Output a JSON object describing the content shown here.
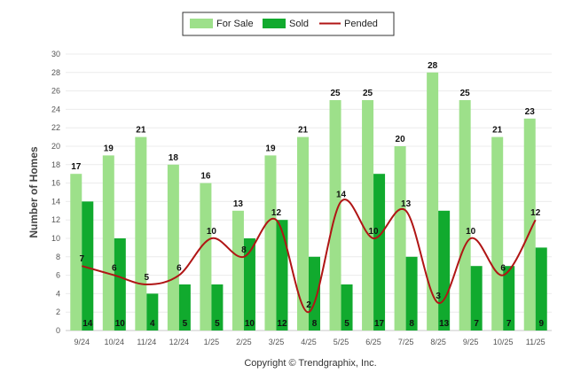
{
  "chart_data": {
    "type": "bar",
    "title": "",
    "ylabel": "Number of Homes",
    "xlabel": "",
    "ylim": [
      0,
      30
    ],
    "ytick_step": 2,
    "grid": true,
    "legend_position": "top-center",
    "categories": [
      "9/24",
      "10/24",
      "11/24",
      "12/24",
      "1/25",
      "2/25",
      "3/25",
      "4/25",
      "5/25",
      "6/25",
      "7/25",
      "8/25",
      "9/25",
      "10/25",
      "11/25"
    ],
    "series": [
      {
        "name": "For Sale",
        "type": "bar",
        "color": "#9de08a",
        "values": [
          17,
          19,
          21,
          18,
          16,
          13,
          19,
          21,
          25,
          25,
          20,
          28,
          25,
          21,
          23
        ]
      },
      {
        "name": "Sold",
        "type": "bar",
        "color": "#11aa2e",
        "values": [
          14,
          10,
          4,
          5,
          5,
          10,
          12,
          8,
          5,
          17,
          8,
          13,
          7,
          7,
          9
        ]
      },
      {
        "name": "Pended",
        "type": "line",
        "color": "#b01515",
        "values": [
          7,
          6,
          5,
          6,
          10,
          8,
          12,
          2,
          14,
          10,
          13,
          3,
          10,
          6,
          12
        ]
      }
    ],
    "footer": "Copyright © Trendgraphix, Inc."
  }
}
